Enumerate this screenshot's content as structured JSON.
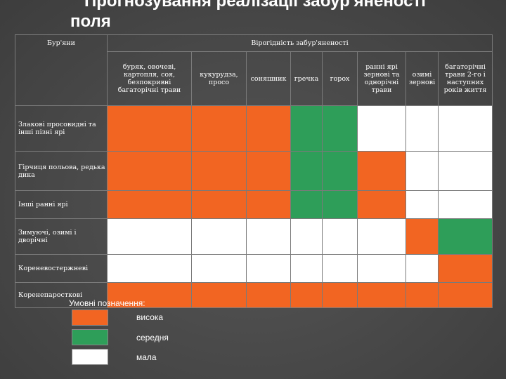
{
  "title": {
    "line1": "Прогнозування реалізації забур'яненості",
    "line2": "поля"
  },
  "table": {
    "corner_label": "Бур'яни",
    "group_header": "Вірогідність забур'яненості",
    "columns": [
      "буряк, овочеві, картопля, соя, безпокривні багаторічні трави",
      "кукурудза, просо",
      "соняшник",
      "гречка",
      "горох",
      "ранні ярі зернові та однорічні трави",
      "озимі зернові",
      "багаторічні трави 2-го і наступних років життя"
    ],
    "rows": [
      {
        "label": "Злакові просовидні та інші пізні ярі",
        "cells": [
          "high",
          "high",
          "high",
          "medium",
          "medium",
          "low",
          "low",
          "low"
        ]
      },
      {
        "label": "Гірчиця польова, редька дика",
        "cells": [
          "high",
          "high",
          "high",
          "medium",
          "medium",
          "high",
          "low",
          "low"
        ]
      },
      {
        "label": "Інші ранні ярі",
        "cells": [
          "high",
          "high",
          "high",
          "medium",
          "medium",
          "high",
          "low",
          "low"
        ]
      },
      {
        "label": "Зимуючі, озимі і дворічні",
        "cells": [
          "low",
          "low",
          "low",
          "low",
          "low",
          "low",
          "high",
          "medium"
        ]
      },
      {
        "label": "Кореневостержневі",
        "cells": [
          "low",
          "low",
          "low",
          "low",
          "low",
          "low",
          "low",
          "high"
        ]
      },
      {
        "label": "Коренепаросткові",
        "cells": [
          "high",
          "high",
          "high",
          "high",
          "high",
          "high",
          "high",
          "high"
        ]
      }
    ]
  },
  "legend": {
    "title": "Умовні позначення:",
    "items": [
      {
        "key": "high",
        "label": "висока",
        "color": "#f26522"
      },
      {
        "key": "medium",
        "label": "середня",
        "color": "#2e9e59"
      },
      {
        "key": "low",
        "label": "мала",
        "color": "#ffffff"
      }
    ]
  }
}
